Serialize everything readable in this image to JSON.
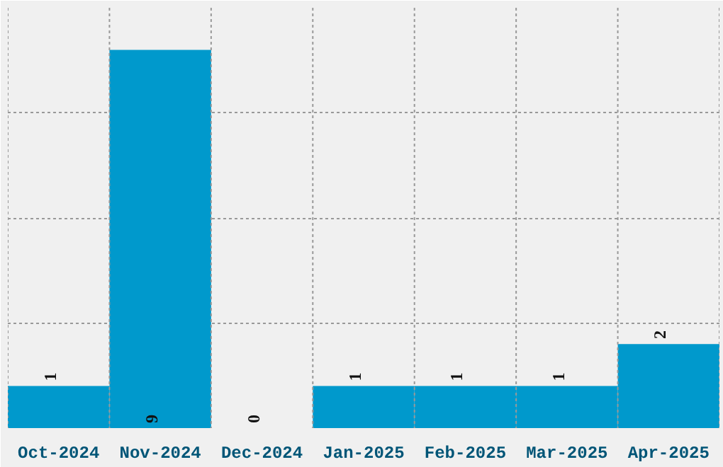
{
  "chart_data": {
    "type": "bar",
    "categories": [
      "Oct-2024",
      "Nov-2024",
      "Dec-2024",
      "Jan-2025",
      "Feb-2025",
      "Mar-2025",
      "Apr-2025"
    ],
    "values": [
      1,
      9,
      0,
      1,
      1,
      1,
      2
    ],
    "color": "#0099cc",
    "data_labels": true,
    "ylim": [
      0,
      10
    ],
    "yticks": [
      {
        "value": 0,
        "label": null
      },
      {
        "value": 2.5,
        "label": null
      },
      {
        "value": 5,
        "label": null
      },
      {
        "value": 7.5,
        "label": null
      },
      {
        "value": 10,
        "label": null
      }
    ],
    "grid": true,
    "tick_labels": "x"
  }
}
